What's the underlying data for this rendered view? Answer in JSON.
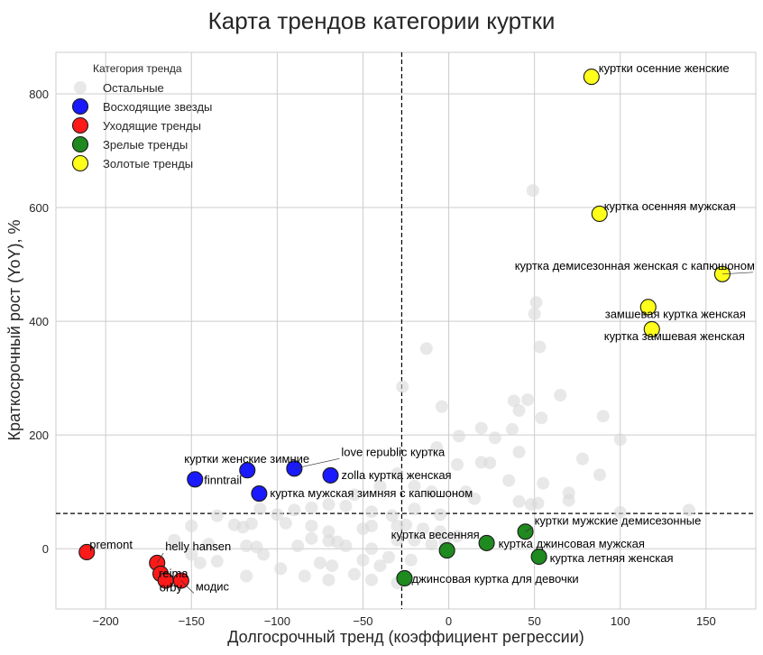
{
  "chart_data": {
    "type": "scatter",
    "title": "Карта трендов категории куртки",
    "xlabel": "Долгосрочный тренд (коэффициент регрессии)",
    "ylabel": "Краткосрочный рост (YoY), %",
    "xlim": [
      -229,
      179
    ],
    "ylim": [
      -106,
      873
    ],
    "xticks": [
      -200,
      -150,
      -100,
      -50,
      0,
      50,
      100,
      150
    ],
    "xtick_labels": [
      "−200",
      "−150",
      "−100",
      "−50",
      "0",
      "50",
      "100",
      "150"
    ],
    "yticks": [
      0,
      200,
      400,
      600,
      800
    ],
    "ytick_labels": [
      "0",
      "200",
      "400",
      "600",
      "800"
    ],
    "grid": true,
    "reference_lines": {
      "x": -27.4,
      "y": 62
    },
    "legend": {
      "title": "Категория тренда",
      "position": "top-left",
      "entries": [
        {
          "key": "other",
          "label": "Остальные",
          "color": "#d9d9d9"
        },
        {
          "key": "rising",
          "label": "Восходящие звезды",
          "color": "#1a1aff"
        },
        {
          "key": "declining",
          "label": "Уходящие тренды",
          "color": "#ff1a1a"
        },
        {
          "key": "mature",
          "label": "Зрелые тренды",
          "color": "#1f8a1f"
        },
        {
          "key": "golden",
          "label": "Золотые тренды",
          "color": "#ffff1a"
        }
      ]
    },
    "series": [
      {
        "name": "Золотые тренды",
        "key": "golden",
        "points": [
          {
            "x": 83.2,
            "y": 830,
            "label": "куртки осенние женские"
          },
          {
            "x": 87.9,
            "y": 589,
            "label": "куртка осенняя мужская"
          },
          {
            "x": 159.5,
            "y": 483,
            "label": "куртка демисезонная женская с капюшоном"
          },
          {
            "x": 116.3,
            "y": 425,
            "label": "замшевая куртка женская"
          },
          {
            "x": 118.4,
            "y": 386,
            "label": "куртка замшевая женская"
          }
        ]
      },
      {
        "name": "Восходящие звезды",
        "key": "rising",
        "points": [
          {
            "x": -147.9,
            "y": 122,
            "label": "finntrail"
          },
          {
            "x": -117.4,
            "y": 138,
            "label": "куртки женские зимние"
          },
          {
            "x": -90.0,
            "y": 141,
            "label": "love republic куртка"
          },
          {
            "x": -68.9,
            "y": 129,
            "label": "zolla куртка женская"
          },
          {
            "x": -110.5,
            "y": 97,
            "label": "куртка мужская зимняя с капюшоном"
          }
        ]
      },
      {
        "name": "Уходящие тренды",
        "key": "declining",
        "points": [
          {
            "x": -211.0,
            "y": -6,
            "label": "premont"
          },
          {
            "x": -170.0,
            "y": -25,
            "label": "helly hansen"
          },
          {
            "x": -168.0,
            "y": -44,
            "label": "reima"
          },
          {
            "x": -165.0,
            "y": -56,
            "label": "orby"
          },
          {
            "x": -156.0,
            "y": -56,
            "label": "модис"
          }
        ]
      },
      {
        "name": "Зрелые тренды",
        "key": "mature",
        "points": [
          {
            "x": -25.8,
            "y": -52,
            "label": "джинсовая куртка для девочки"
          },
          {
            "x": -1.0,
            "y": -3,
            "label": "куртка весенняя"
          },
          {
            "x": 22.1,
            "y": 10,
            "label": "куртка джинсовая мужская"
          },
          {
            "x": 44.7,
            "y": 30,
            "label": "куртки мужские демисезонные"
          },
          {
            "x": 52.6,
            "y": -14,
            "label": "куртка летняя женская"
          }
        ]
      },
      {
        "name": "Остальные",
        "key": "other",
        "points": [
          {
            "x": 49,
            "y": 630
          },
          {
            "x": 51,
            "y": 433
          },
          {
            "x": 50,
            "y": 413
          },
          {
            "x": 53,
            "y": 355
          },
          {
            "x": -13,
            "y": 352
          },
          {
            "x": -27,
            "y": 285
          },
          {
            "x": 65,
            "y": 270
          },
          {
            "x": 38,
            "y": 260
          },
          {
            "x": 46,
            "y": 262
          },
          {
            "x": 41,
            "y": 243
          },
          {
            "x": -4,
            "y": 250
          },
          {
            "x": 54,
            "y": 230
          },
          {
            "x": 90,
            "y": 233
          },
          {
            "x": 19,
            "y": 212
          },
          {
            "x": 37,
            "y": 210
          },
          {
            "x": 6,
            "y": 198
          },
          {
            "x": 27,
            "y": 195
          },
          {
            "x": 100,
            "y": 192
          },
          {
            "x": -7,
            "y": 178
          },
          {
            "x": 41,
            "y": 170
          },
          {
            "x": 78,
            "y": 158
          },
          {
            "x": 19,
            "y": 152
          },
          {
            "x": 24,
            "y": 151
          },
          {
            "x": 5,
            "y": 148
          },
          {
            "x": -30,
            "y": 132
          },
          {
            "x": 88,
            "y": 130
          },
          {
            "x": 35,
            "y": 120
          },
          {
            "x": 55,
            "y": 115
          },
          {
            "x": -20,
            "y": 110
          },
          {
            "x": -10,
            "y": 100
          },
          {
            "x": 10,
            "y": 100
          },
          {
            "x": 15,
            "y": 88
          },
          {
            "x": 70,
            "y": 98
          },
          {
            "x": 41,
            "y": 83
          },
          {
            "x": 48,
            "y": 78
          },
          {
            "x": 52,
            "y": 80
          },
          {
            "x": 70,
            "y": 85
          },
          {
            "x": -55,
            "y": 95
          },
          {
            "x": -40,
            "y": 110
          },
          {
            "x": -80,
            "y": 72
          },
          {
            "x": -70,
            "y": 78
          },
          {
            "x": -60,
            "y": 75
          },
          {
            "x": -100,
            "y": 60
          },
          {
            "x": -90,
            "y": 68
          },
          {
            "x": -110,
            "y": 70
          },
          {
            "x": -135,
            "y": 58
          },
          {
            "x": 140,
            "y": 68
          },
          {
            "x": 100,
            "y": 64
          },
          {
            "x": -20,
            "y": 70
          },
          {
            "x": -5,
            "y": 60
          },
          {
            "x": -45,
            "y": 65
          },
          {
            "x": -33,
            "y": 58
          },
          {
            "x": -150,
            "y": 40
          },
          {
            "x": -125,
            "y": 42
          },
          {
            "x": -120,
            "y": 38
          },
          {
            "x": -115,
            "y": 44
          },
          {
            "x": -95,
            "y": 45
          },
          {
            "x": -80,
            "y": 40
          },
          {
            "x": -70,
            "y": 30
          },
          {
            "x": -50,
            "y": 35
          },
          {
            "x": -45,
            "y": 40
          },
          {
            "x": -30,
            "y": 40
          },
          {
            "x": -25,
            "y": 42
          },
          {
            "x": -15,
            "y": 35
          },
          {
            "x": -5,
            "y": 30
          },
          {
            "x": 5,
            "y": 22
          },
          {
            "x": -160,
            "y": 15
          },
          {
            "x": -140,
            "y": 8
          },
          {
            "x": -118,
            "y": 5
          },
          {
            "x": -112,
            "y": 3
          },
          {
            "x": -108,
            "y": -10
          },
          {
            "x": -98,
            "y": -35
          },
          {
            "x": -88,
            "y": 5
          },
          {
            "x": -80,
            "y": 18
          },
          {
            "x": -70,
            "y": 14
          },
          {
            "x": -65,
            "y": 12
          },
          {
            "x": -60,
            "y": 5
          },
          {
            "x": -75,
            "y": -25
          },
          {
            "x": -68,
            "y": -30
          },
          {
            "x": -50,
            "y": -20
          },
          {
            "x": -45,
            "y": 0
          },
          {
            "x": -35,
            "y": -15
          },
          {
            "x": -30,
            "y": 15
          },
          {
            "x": -20,
            "y": 15
          },
          {
            "x": -10,
            "y": 8
          },
          {
            "x": -2,
            "y": 12
          },
          {
            "x": -135,
            "y": -22
          },
          {
            "x": -145,
            "y": -25
          },
          {
            "x": -118,
            "y": -48
          },
          {
            "x": -84,
            "y": -48
          },
          {
            "x": -70,
            "y": -55
          },
          {
            "x": -55,
            "y": -45
          },
          {
            "x": -45,
            "y": -55
          },
          {
            "x": -30,
            "y": -60
          },
          {
            "x": -22,
            "y": -20
          },
          {
            "x": -150,
            "y": -10
          },
          {
            "x": -40,
            "y": -30
          }
        ]
      }
    ]
  }
}
